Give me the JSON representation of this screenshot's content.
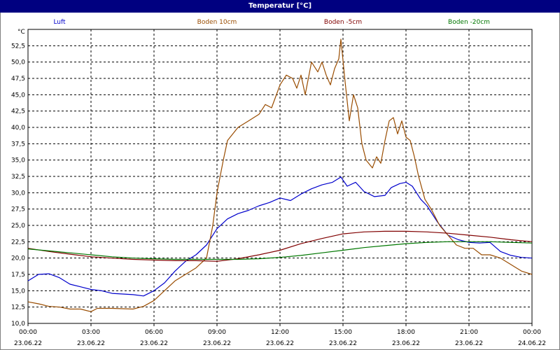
{
  "window": {
    "title": "Temperatur [°C]"
  },
  "chart_data": {
    "type": "line",
    "title": "Temperatur [°C]",
    "ylabel": "°C",
    "xlabel": "",
    "ylim": [
      10,
      55
    ],
    "xlim_hours": [
      0,
      24
    ],
    "grid": true,
    "legend_position": "top",
    "y_ticks": [
      "10,0",
      "12,5",
      "15,0",
      "17,5",
      "20,0",
      "22,5",
      "25,0",
      "27,5",
      "30,0",
      "32,5",
      "35,0",
      "37,5",
      "40,0",
      "42,5",
      "45,0",
      "47,5",
      "50,0",
      "52,5"
    ],
    "x_ticks": [
      {
        "time": "00:00",
        "date": "23.06.22"
      },
      {
        "time": "03:00",
        "date": "23.06.22"
      },
      {
        "time": "06:00",
        "date": "23.06.22"
      },
      {
        "time": "09:00",
        "date": "23.06.22"
      },
      {
        "time": "12:00",
        "date": "23.06.22"
      },
      {
        "time": "15:00",
        "date": "23.06.22"
      },
      {
        "time": "18:00",
        "date": "23.06.22"
      },
      {
        "time": "21:00",
        "date": "23.06.22"
      },
      {
        "time": "00:00",
        "date": "24.06.22"
      }
    ],
    "series": [
      {
        "name": "Luft",
        "color": "#0000cc",
        "points": [
          [
            0,
            16.5
          ],
          [
            0.5,
            17.5
          ],
          [
            1,
            17.6
          ],
          [
            1.5,
            17.0
          ],
          [
            2,
            16.0
          ],
          [
            2.5,
            15.6
          ],
          [
            3,
            15.2
          ],
          [
            3.5,
            15.0
          ],
          [
            4,
            14.6
          ],
          [
            4.5,
            14.5
          ],
          [
            5,
            14.4
          ],
          [
            5.5,
            14.2
          ],
          [
            6,
            15.0
          ],
          [
            6.5,
            16.2
          ],
          [
            7,
            18.0
          ],
          [
            7.5,
            19.5
          ],
          [
            8,
            20.5
          ],
          [
            8.5,
            22.0
          ],
          [
            9,
            24.5
          ],
          [
            9.5,
            26.0
          ],
          [
            10,
            26.8
          ],
          [
            10.5,
            27.3
          ],
          [
            11,
            28.0
          ],
          [
            11.5,
            28.5
          ],
          [
            12,
            29.2
          ],
          [
            12.5,
            28.8
          ],
          [
            13,
            29.8
          ],
          [
            13.5,
            30.6
          ],
          [
            14,
            31.2
          ],
          [
            14.5,
            31.6
          ],
          [
            14.9,
            32.4
          ],
          [
            15.2,
            31.0
          ],
          [
            15.6,
            31.6
          ],
          [
            16,
            30.2
          ],
          [
            16.5,
            29.4
          ],
          [
            17,
            29.6
          ],
          [
            17.3,
            30.8
          ],
          [
            17.7,
            31.4
          ],
          [
            18,
            31.6
          ],
          [
            18.3,
            31.0
          ],
          [
            18.7,
            29.0
          ],
          [
            19,
            28.0
          ],
          [
            19.5,
            25.5
          ],
          [
            20,
            23.5
          ],
          [
            20.5,
            22.8
          ],
          [
            21,
            22.4
          ],
          [
            21.5,
            22.3
          ],
          [
            22,
            22.4
          ],
          [
            22.5,
            21.0
          ],
          [
            23,
            20.4
          ],
          [
            23.5,
            20.1
          ],
          [
            24,
            20.0
          ]
        ]
      },
      {
        "name": "Boden 10cm",
        "color": "#994c00",
        "points": [
          [
            0,
            13.3
          ],
          [
            0.5,
            13.0
          ],
          [
            1,
            12.6
          ],
          [
            1.5,
            12.5
          ],
          [
            2,
            12.2
          ],
          [
            2.5,
            12.2
          ],
          [
            3,
            11.8
          ],
          [
            3.3,
            12.3
          ],
          [
            4,
            12.3
          ],
          [
            5,
            12.2
          ],
          [
            5.5,
            12.6
          ],
          [
            6,
            13.5
          ],
          [
            6.5,
            15.0
          ],
          [
            7,
            16.5
          ],
          [
            7.5,
            17.5
          ],
          [
            8,
            18.5
          ],
          [
            8.5,
            20.0
          ],
          [
            8.8,
            25.0
          ],
          [
            9,
            30.0
          ],
          [
            9.3,
            35.0
          ],
          [
            9.5,
            38.0
          ],
          [
            10,
            40.0
          ],
          [
            10.5,
            41.0
          ],
          [
            11,
            42.0
          ],
          [
            11.3,
            43.5
          ],
          [
            11.6,
            43.0
          ],
          [
            12,
            46.5
          ],
          [
            12.3,
            48.0
          ],
          [
            12.6,
            47.5
          ],
          [
            12.8,
            46.0
          ],
          [
            13,
            48.0
          ],
          [
            13.2,
            45.0
          ],
          [
            13.5,
            50.0
          ],
          [
            13.8,
            48.5
          ],
          [
            14,
            50.0
          ],
          [
            14.2,
            48.0
          ],
          [
            14.4,
            46.5
          ],
          [
            14.6,
            49.0
          ],
          [
            14.8,
            50.5
          ],
          [
            14.9,
            53.5
          ],
          [
            15.1,
            47.0
          ],
          [
            15.3,
            41.0
          ],
          [
            15.5,
            45.0
          ],
          [
            15.7,
            43.0
          ],
          [
            15.9,
            37.5
          ],
          [
            16.1,
            35.0
          ],
          [
            16.4,
            33.8
          ],
          [
            16.6,
            35.5
          ],
          [
            16.8,
            34.5
          ],
          [
            17,
            38.0
          ],
          [
            17.2,
            41.0
          ],
          [
            17.4,
            41.5
          ],
          [
            17.6,
            39.0
          ],
          [
            17.8,
            41.0
          ],
          [
            18,
            38.5
          ],
          [
            18.2,
            38.0
          ],
          [
            18.4,
            35.5
          ],
          [
            18.6,
            32.5
          ],
          [
            18.9,
            29.0
          ],
          [
            19.2,
            27.5
          ],
          [
            19.6,
            25.0
          ],
          [
            20,
            23.5
          ],
          [
            20.4,
            22.0
          ],
          [
            20.8,
            21.5
          ],
          [
            21.2,
            21.5
          ],
          [
            21.6,
            20.5
          ],
          [
            22,
            20.5
          ],
          [
            22.5,
            20.0
          ],
          [
            23,
            19.0
          ],
          [
            23.5,
            18.0
          ],
          [
            24,
            17.5
          ]
        ]
      },
      {
        "name": "Boden -5cm",
        "color": "#800000",
        "points": [
          [
            0,
            21.5
          ],
          [
            1,
            21.0
          ],
          [
            2,
            20.6
          ],
          [
            3,
            20.2
          ],
          [
            4,
            20.0
          ],
          [
            5,
            19.8
          ],
          [
            6,
            19.7
          ],
          [
            7,
            19.6
          ],
          [
            8,
            19.6
          ],
          [
            9,
            19.5
          ],
          [
            10,
            19.9
          ],
          [
            11,
            20.5
          ],
          [
            12,
            21.2
          ],
          [
            13,
            22.2
          ],
          [
            14,
            23.0
          ],
          [
            15,
            23.7
          ],
          [
            16,
            24.0
          ],
          [
            17,
            24.1
          ],
          [
            18,
            24.1
          ],
          [
            19,
            24.0
          ],
          [
            20,
            23.8
          ],
          [
            21,
            23.5
          ],
          [
            22,
            23.2
          ],
          [
            23,
            22.8
          ],
          [
            24,
            22.5
          ]
        ]
      },
      {
        "name": "Boden -20cm",
        "color": "#007700",
        "points": [
          [
            0,
            21.4
          ],
          [
            1,
            21.1
          ],
          [
            2,
            20.8
          ],
          [
            3,
            20.5
          ],
          [
            4,
            20.2
          ],
          [
            5,
            20.0
          ],
          [
            6,
            19.9
          ],
          [
            7,
            19.8
          ],
          [
            8,
            19.8
          ],
          [
            9,
            19.8
          ],
          [
            10,
            19.8
          ],
          [
            11,
            19.9
          ],
          [
            12,
            20.1
          ],
          [
            13,
            20.4
          ],
          [
            14,
            20.8
          ],
          [
            15,
            21.2
          ],
          [
            16,
            21.6
          ],
          [
            17,
            21.9
          ],
          [
            18,
            22.2
          ],
          [
            19,
            22.4
          ],
          [
            20,
            22.5
          ],
          [
            21,
            22.5
          ],
          [
            22,
            22.5
          ],
          [
            23,
            22.4
          ],
          [
            24,
            22.3
          ]
        ]
      }
    ]
  }
}
